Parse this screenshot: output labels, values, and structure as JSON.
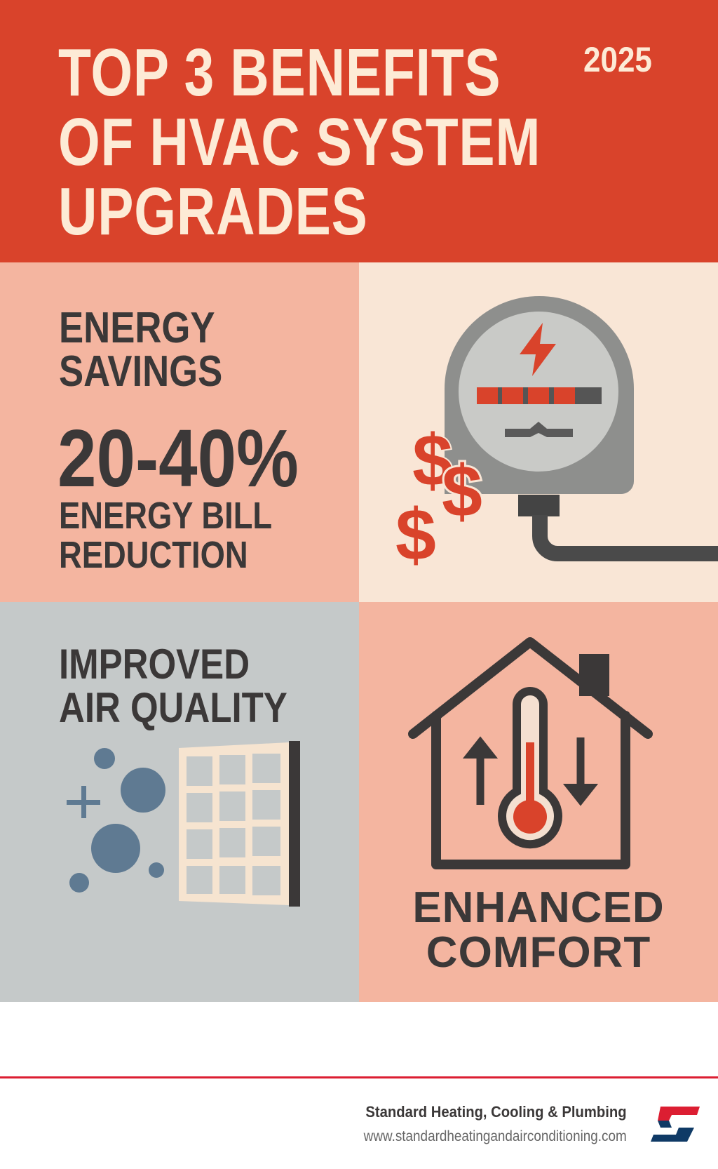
{
  "header": {
    "title_lines": [
      "TOP 3 BENEFITS",
      "OF HVAC SYSTEM",
      "UPGRADES"
    ],
    "year": "2025"
  },
  "energy": {
    "title_lines": [
      "ENERGY",
      "SAVINGS"
    ],
    "stat": "20-40%",
    "caption_lines": [
      "ENERGY BILL",
      "REDUCTION"
    ],
    "icon": "electric-meter-with-dollars"
  },
  "air": {
    "title_lines": [
      "IMPROVED",
      "AIR QUALITY"
    ],
    "icon": "air-filter-with-particles"
  },
  "comfort": {
    "title_lines": [
      "ENHANCED",
      "COMFORT"
    ],
    "icon": "house-thermometer"
  },
  "footer": {
    "company": "Standard Heating, Cooling & Plumbing",
    "website": "www.standardheatingandairconditioning.com",
    "logo_text": "S"
  },
  "colors": {
    "header": "#d9432b",
    "pink": "#f4b5a0",
    "cream": "#f9e6d6",
    "gray": "#c5c9c9",
    "text": "#3b3838",
    "accent_red": "#dc1e32",
    "logo_blue": "#0f3a66"
  }
}
